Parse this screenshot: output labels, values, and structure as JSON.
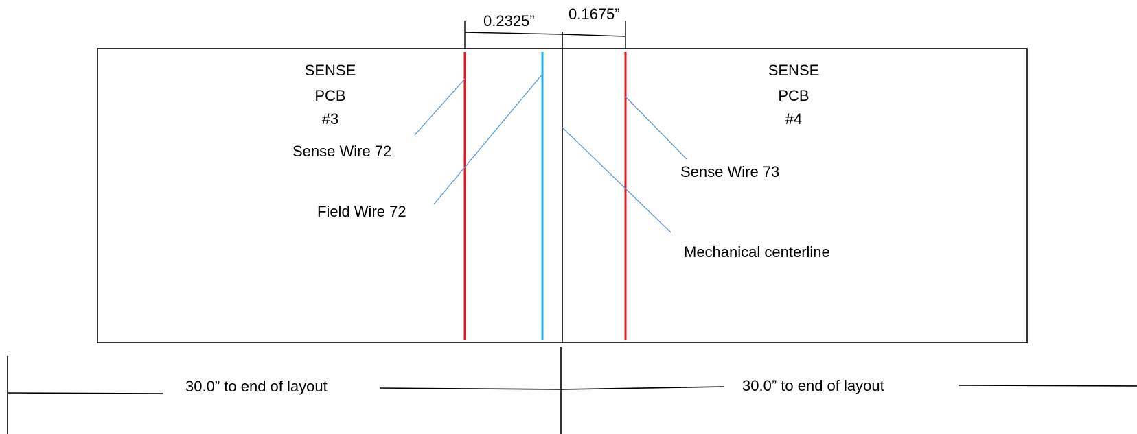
{
  "dimensions": {
    "top_left": "0.2325”",
    "top_right": "0.1675”",
    "bottom_left": "30.0” to end of layout",
    "bottom_right": "30.0” to end of layout"
  },
  "boards": {
    "left": {
      "lines": [
        "SENSE",
        "PCB",
        "#3"
      ]
    },
    "right": {
      "lines": [
        "SENSE",
        "PCB",
        "#4"
      ]
    }
  },
  "callouts": {
    "sense_wire_left": "Sense Wire 72",
    "field_wire": "Field Wire 72",
    "sense_wire_right": "Sense Wire 73",
    "centerline": "Mechanical centerline"
  },
  "colors": {
    "sense_wire": "#e8141c",
    "field_wire": "#1cb2e6",
    "leader": "#5b9bd5",
    "outline": "#000000"
  }
}
